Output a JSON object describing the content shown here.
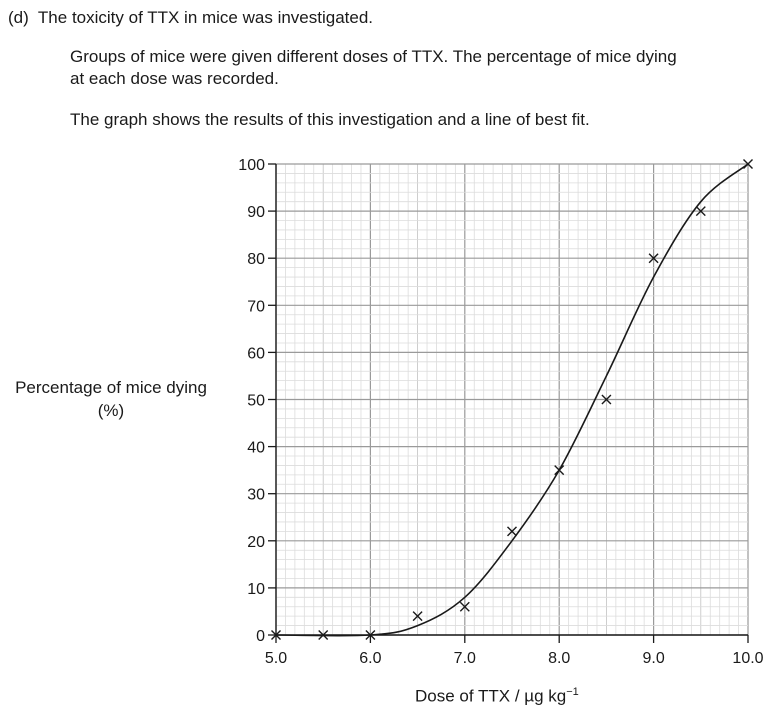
{
  "question": {
    "part": "(d)",
    "intro": "The toxicity of TTX in mice was investigated.",
    "para1_line1": "Groups of mice were given different doses of TTX. The percentage of mice dying",
    "para1_line2": "at each dose was recorded.",
    "para2": "The graph shows the results of this investigation and a line of best fit."
  },
  "chart_data": {
    "type": "scatter",
    "xlabel": "Dose of TTX / µg kg",
    "xlabel_unit_exponent": "−1",
    "ylabel": "Percentage of mice dying",
    "ylabel_unit": "(%)",
    "xlim": [
      5.0,
      10.0
    ],
    "ylim": [
      0,
      100
    ],
    "x_ticks": [
      "5.0",
      "6.0",
      "7.0",
      "8.0",
      "9.0",
      "10.0"
    ],
    "y_ticks": [
      "0",
      "10",
      "20",
      "30",
      "40",
      "50",
      "60",
      "70",
      "80",
      "90",
      "100"
    ],
    "grid": true,
    "marker": "×",
    "points": [
      {
        "x": 5.0,
        "y": 0
      },
      {
        "x": 5.5,
        "y": 0
      },
      {
        "x": 6.0,
        "y": 0
      },
      {
        "x": 6.5,
        "y": 4
      },
      {
        "x": 7.0,
        "y": 6
      },
      {
        "x": 7.5,
        "y": 22
      },
      {
        "x": 8.0,
        "y": 35
      },
      {
        "x": 8.5,
        "y": 50
      },
      {
        "x": 9.0,
        "y": 80
      },
      {
        "x": 9.5,
        "y": 90
      },
      {
        "x": 10.0,
        "y": 100
      }
    ],
    "best_fit": [
      {
        "x": 5.0,
        "y": 0
      },
      {
        "x": 6.0,
        "y": 0
      },
      {
        "x": 6.5,
        "y": 2
      },
      {
        "x": 7.0,
        "y": 8
      },
      {
        "x": 7.5,
        "y": 20
      },
      {
        "x": 8.0,
        "y": 35
      },
      {
        "x": 8.5,
        "y": 55
      },
      {
        "x": 9.0,
        "y": 76
      },
      {
        "x": 9.5,
        "y": 92
      },
      {
        "x": 10.0,
        "y": 100
      }
    ]
  }
}
